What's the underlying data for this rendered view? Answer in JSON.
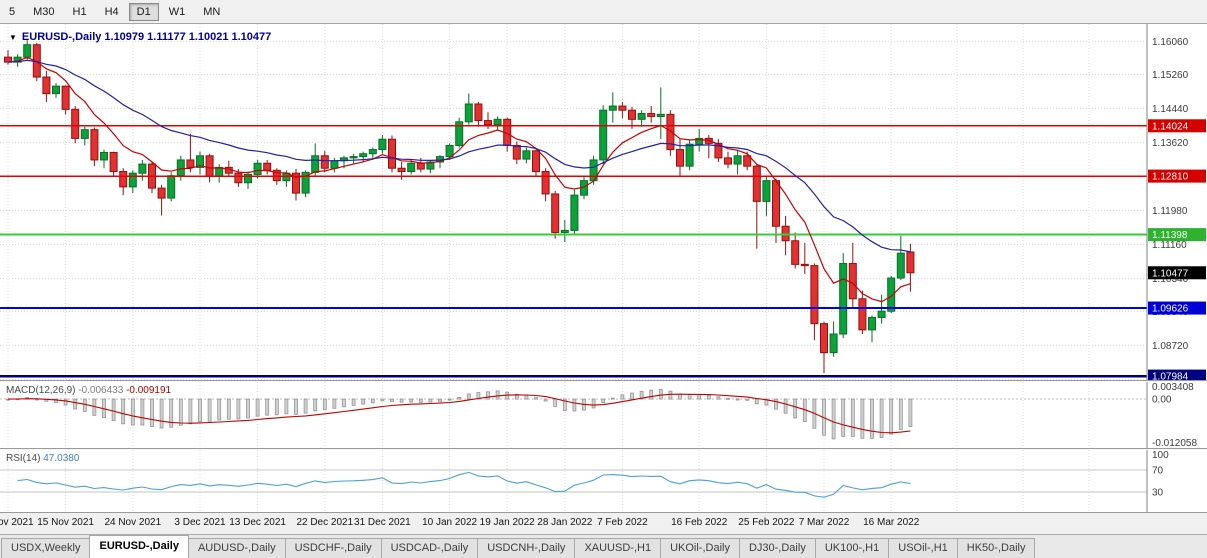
{
  "toolbar": {
    "timeframes": [
      {
        "label": "5",
        "active": false
      },
      {
        "label": "M30",
        "active": false
      },
      {
        "label": "H1",
        "active": false
      },
      {
        "label": "H4",
        "active": false
      },
      {
        "label": "D1",
        "active": true
      },
      {
        "label": "W1",
        "active": false
      },
      {
        "label": "MN",
        "active": false
      }
    ]
  },
  "chart": {
    "title": {
      "symbol": "EURUSD-,Daily",
      "open": "1.10979",
      "high": "1.11177",
      "low": "1.10021",
      "close": "1.10477"
    },
    "scale": {
      "top": 1.1648,
      "bottom": 1.0789
    },
    "y_ticks": [
      "1.16060",
      "1.15260",
      "1.14440",
      "1.13620",
      "1.12800",
      "1.11980",
      "1.11160",
      "1.10340",
      "1.09540",
      "1.08720",
      "1.07900"
    ],
    "hlines": [
      {
        "name": "resistance-line-upper",
        "price": 1.14024,
        "label": "1.14024",
        "color": "#e80000",
        "tag": "#d40000",
        "width": 1.4
      },
      {
        "name": "resistance-line-lower",
        "price": 1.1281,
        "label": "1.12810",
        "color": "#e80000",
        "tag": "#d40000",
        "width": 1.4
      },
      {
        "name": "support-line-green",
        "price": 1.11398,
        "label": "1.11398",
        "color": "#35cc35",
        "tag": "#2db32d",
        "width": 2
      },
      {
        "name": "support-line-blue",
        "price": 1.09626,
        "label": "1.09626",
        "color": "#0000f0",
        "tag": "#0000d8",
        "width": 2
      },
      {
        "name": "support-line-navy",
        "price": 1.07984,
        "label": "1.07984",
        "color": "#000080",
        "tag": "#000080",
        "width": 2.5
      }
    ],
    "current_price": {
      "price": 1.10477,
      "label": "1.10477",
      "tag": "#000000"
    },
    "colors": {
      "up": "#0ca13a",
      "up_stroke": "#056f26",
      "down": "#e03232",
      "down_stroke": "#9b0d0d"
    },
    "ma": [
      {
        "name": "ma-fast-red",
        "period": 8,
        "color": "#cc0000"
      },
      {
        "name": "ma-slow-blue",
        "period": 24,
        "color": "#2121b4"
      }
    ],
    "candles": [
      [
        1.1568,
        1.1585,
        1.155,
        1.1556
      ],
      [
        1.1556,
        1.1575,
        1.1545,
        1.1568
      ],
      [
        1.1568,
        1.1609,
        1.156,
        1.1598
      ],
      [
        1.1598,
        1.1602,
        1.151,
        1.152
      ],
      [
        1.152,
        1.1535,
        1.146,
        1.148
      ],
      [
        1.148,
        1.1505,
        1.147,
        1.1498
      ],
      [
        1.1498,
        1.15,
        1.143,
        1.1442
      ],
      [
        1.1442,
        1.145,
        1.136,
        1.1372
      ],
      [
        1.1372,
        1.14,
        1.1355,
        1.1393
      ],
      [
        1.1393,
        1.1398,
        1.1305,
        1.132
      ],
      [
        1.132,
        1.1345,
        1.13,
        1.1338
      ],
      [
        1.1338,
        1.134,
        1.128,
        1.1292
      ],
      [
        1.1292,
        1.13,
        1.1235,
        1.1255
      ],
      [
        1.1255,
        1.1295,
        1.124,
        1.1288
      ],
      [
        1.1288,
        1.132,
        1.127,
        1.131
      ],
      [
        1.131,
        1.1315,
        1.124,
        1.1252
      ],
      [
        1.1252,
        1.126,
        1.1186,
        1.1228
      ],
      [
        1.1228,
        1.129,
        1.122,
        1.1282
      ],
      [
        1.1282,
        1.133,
        1.127,
        1.132
      ],
      [
        1.132,
        1.1383,
        1.129,
        1.1302
      ],
      [
        1.1302,
        1.134,
        1.1285,
        1.133
      ],
      [
        1.133,
        1.1335,
        1.1266,
        1.128
      ],
      [
        1.128,
        1.131,
        1.1265,
        1.1302
      ],
      [
        1.1302,
        1.1318,
        1.128,
        1.1288
      ],
      [
        1.1288,
        1.1298,
        1.1255,
        1.1265
      ],
      [
        1.1265,
        1.1292,
        1.125,
        1.1285
      ],
      [
        1.1285,
        1.132,
        1.1275,
        1.1312
      ],
      [
        1.1312,
        1.132,
        1.1285,
        1.1295
      ],
      [
        1.1295,
        1.13,
        1.126,
        1.127
      ],
      [
        1.127,
        1.1295,
        1.1255,
        1.1288
      ],
      [
        1.1288,
        1.1298,
        1.1222,
        1.124
      ],
      [
        1.124,
        1.1295,
        1.123,
        1.129
      ],
      [
        1.129,
        1.136,
        1.128,
        1.133
      ],
      [
        1.133,
        1.1342,
        1.129,
        1.13
      ],
      [
        1.13,
        1.1325,
        1.129,
        1.1318
      ],
      [
        1.1318,
        1.133,
        1.13,
        1.1325
      ],
      [
        1.1325,
        1.1335,
        1.131,
        1.1328
      ],
      [
        1.1328,
        1.134,
        1.1315,
        1.1335
      ],
      [
        1.1335,
        1.135,
        1.132,
        1.1345
      ],
      [
        1.1345,
        1.138,
        1.1335,
        1.137
      ],
      [
        1.137,
        1.1379,
        1.129,
        1.13
      ],
      [
        1.13,
        1.1315,
        1.1272,
        1.1292
      ],
      [
        1.1292,
        1.132,
        1.1285,
        1.1312
      ],
      [
        1.1312,
        1.1325,
        1.129,
        1.1298
      ],
      [
        1.1298,
        1.132,
        1.1288,
        1.1315
      ],
      [
        1.1315,
        1.1332,
        1.13,
        1.1328
      ],
      [
        1.1328,
        1.136,
        1.132,
        1.1355
      ],
      [
        1.1355,
        1.1422,
        1.135,
        1.1412
      ],
      [
        1.1412,
        1.148,
        1.1405,
        1.1455
      ],
      [
        1.1455,
        1.146,
        1.14,
        1.1415
      ],
      [
        1.1415,
        1.1435,
        1.1395,
        1.1405
      ],
      [
        1.1405,
        1.1425,
        1.139,
        1.1418
      ],
      [
        1.1418,
        1.1422,
        1.134,
        1.1355
      ],
      [
        1.1355,
        1.1365,
        1.131,
        1.1322
      ],
      [
        1.1322,
        1.135,
        1.1312,
        1.1342
      ],
      [
        1.1342,
        1.1345,
        1.128,
        1.1292
      ],
      [
        1.1292,
        1.13,
        1.122,
        1.1238
      ],
      [
        1.1238,
        1.1245,
        1.113,
        1.1145
      ],
      [
        1.1145,
        1.1175,
        1.1122,
        1.115
      ],
      [
        1.115,
        1.1248,
        1.114,
        1.1235
      ],
      [
        1.1235,
        1.128,
        1.1225,
        1.127
      ],
      [
        1.127,
        1.133,
        1.126,
        1.132
      ],
      [
        1.132,
        1.1452,
        1.131,
        1.144
      ],
      [
        1.144,
        1.1483,
        1.141,
        1.145
      ],
      [
        1.145,
        1.146,
        1.142,
        1.144
      ],
      [
        1.144,
        1.1448,
        1.1395,
        1.1418
      ],
      [
        1.1418,
        1.144,
        1.14,
        1.1432
      ],
      [
        1.1432,
        1.145,
        1.141,
        1.1425
      ],
      [
        1.1425,
        1.1495,
        1.137,
        1.143
      ],
      [
        1.143,
        1.144,
        1.133,
        1.1345
      ],
      [
        1.1345,
        1.137,
        1.128,
        1.1305
      ],
      [
        1.1305,
        1.1368,
        1.1295,
        1.1358
      ],
      [
        1.1358,
        1.1395,
        1.134,
        1.1372
      ],
      [
        1.1372,
        1.138,
        1.1324,
        1.136
      ],
      [
        1.136,
        1.137,
        1.1315,
        1.1325
      ],
      [
        1.1325,
        1.134,
        1.13,
        1.131
      ],
      [
        1.131,
        1.1345,
        1.1285,
        1.133
      ],
      [
        1.133,
        1.134,
        1.1295,
        1.1305
      ],
      [
        1.1305,
        1.131,
        1.1106,
        1.122
      ],
      [
        1.122,
        1.128,
        1.1185,
        1.127
      ],
      [
        1.127,
        1.1275,
        1.112,
        1.116
      ],
      [
        1.116,
        1.1185,
        1.109,
        1.1125
      ],
      [
        1.1125,
        1.1145,
        1.1058,
        1.1068
      ],
      [
        1.1068,
        1.112,
        1.1045,
        1.1065
      ],
      [
        1.1065,
        1.107,
        1.0885,
        1.0925
      ],
      [
        1.0925,
        1.093,
        1.0806,
        1.0855
      ],
      [
        1.0855,
        1.093,
        1.0845,
        1.09
      ],
      [
        1.09,
        1.1095,
        1.089,
        1.107
      ],
      [
        1.107,
        1.112,
        1.0965,
        1.0985
      ],
      [
        1.0985,
        1.1005,
        1.09,
        1.091
      ],
      [
        1.091,
        1.0945,
        1.088,
        1.094
      ],
      [
        1.094,
        1.0995,
        1.0925,
        1.0955
      ],
      [
        1.0955,
        1.104,
        1.095,
        1.1035
      ],
      [
        1.1035,
        1.1137,
        1.103,
        1.1095
      ],
      [
        1.10979,
        1.11177,
        1.10021,
        1.10477
      ]
    ],
    "date_labels": [
      {
        "text": "5 Nov 2021",
        "i": 0
      },
      {
        "text": "15 Nov 2021",
        "i": 6
      },
      {
        "text": "24 Nov 2021",
        "i": 13
      },
      {
        "text": "3 Dec 2021",
        "i": 20
      },
      {
        "text": "13 Dec 2021",
        "i": 26
      },
      {
        "text": "22 Dec 2021",
        "i": 33
      },
      {
        "text": "31 Dec 2021",
        "i": 39
      },
      {
        "text": "10 Jan 2022",
        "i": 46
      },
      {
        "text": "19 Jan 2022",
        "i": 52
      },
      {
        "text": "28 Jan 2022",
        "i": 58
      },
      {
        "text": "7 Feb 2022",
        "i": 64
      },
      {
        "text": "16 Feb 2022",
        "i": 72
      },
      {
        "text": "25 Feb 2022",
        "i": 79
      },
      {
        "text": "7 Mar 2022",
        "i": 85
      },
      {
        "text": "16 Mar 2022",
        "i": 92
      }
    ]
  },
  "macd": {
    "name": "MACD(12,26,9)",
    "value_main": "-0.006433",
    "value_signal": "-0.009191",
    "fast": 12,
    "slow": 26,
    "signal": 9,
    "axis": [
      "0.003408",
      "0.00",
      "-0.012058"
    ],
    "hist_fill": "#d2d2d2",
    "hist_stroke": "#8f8f8f",
    "signal_color": "#c40000"
  },
  "rsi": {
    "name": "RSI(14)",
    "value": "47.0380",
    "period": 14,
    "levels": [
      "100",
      "70",
      "30"
    ],
    "line_color": "#4aa0d8",
    "level_color": "#c6c6c6"
  },
  "tabs": [
    {
      "label": "USDX,Weekly",
      "active": false
    },
    {
      "label": "EURUSD-,Daily",
      "active": true
    },
    {
      "label": "AUDUSD-,Daily",
      "active": false
    },
    {
      "label": "USDCHF-,Daily",
      "active": false
    },
    {
      "label": "USDCAD-,Daily",
      "active": false
    },
    {
      "label": "USDCNH-,Daily",
      "active": false
    },
    {
      "label": "XAUUSD-,H1",
      "active": false
    },
    {
      "label": "UKOil-,Daily",
      "active": false
    },
    {
      "label": "DJ30-,Daily",
      "active": false
    },
    {
      "label": "UK100-,H1",
      "active": false
    },
    {
      "label": "USOil-,H1",
      "active": false
    },
    {
      "label": "HK50-,Daily",
      "active": false
    }
  ]
}
